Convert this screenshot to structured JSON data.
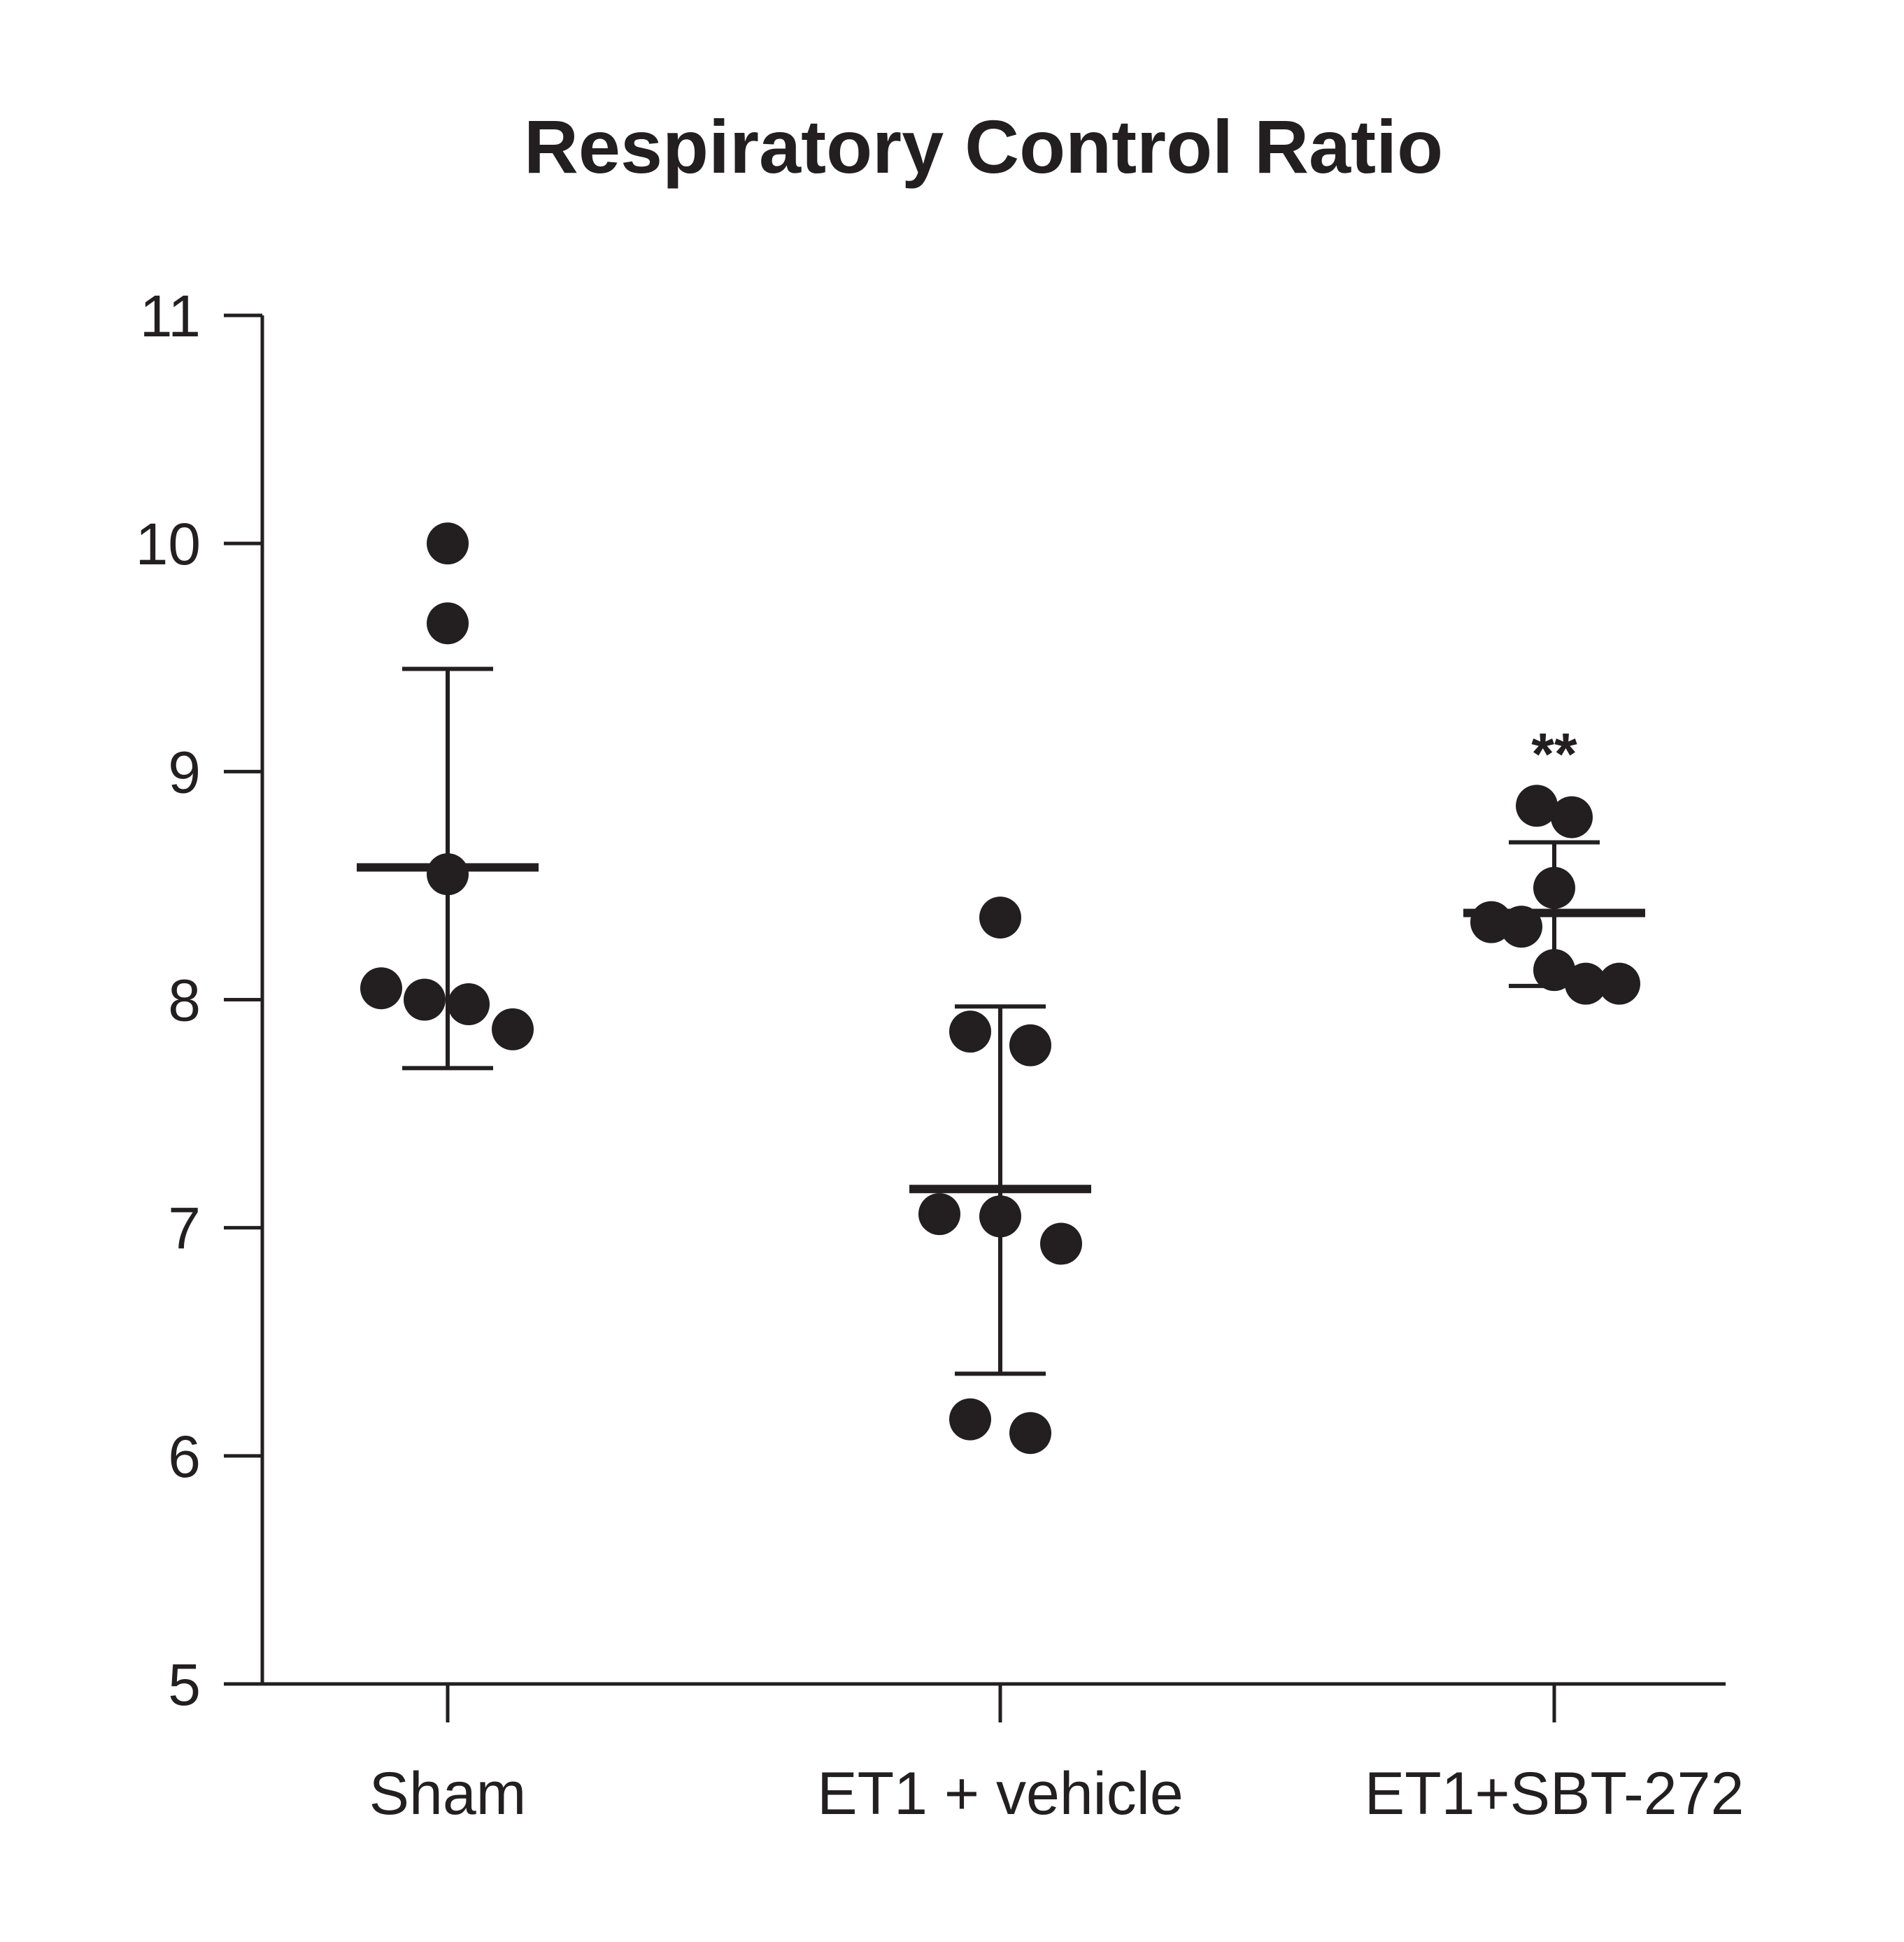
{
  "chart_data": {
    "type": "scatter",
    "title": "Respiratory Control Ratio",
    "xlabel": "",
    "ylabel": "",
    "ylim": [
      5,
      11
    ],
    "yticks": [
      "5",
      "6",
      "7",
      "8",
      "9",
      "10",
      "11"
    ],
    "grid": false,
    "categories": [
      "Sham",
      "ET1 + vehicle",
      "ET1+SBT-272"
    ],
    "groups": [
      {
        "category": "Sham",
        "points": [
          10.0,
          9.65,
          8.55,
          8.05,
          8.0,
          7.98,
          7.87
        ],
        "mean": 8.58,
        "error_upper": 9.45,
        "error_lower": 7.7,
        "annotation": ""
      },
      {
        "category": "ET1 + vehicle",
        "points": [
          8.36,
          7.86,
          7.8,
          7.06,
          7.05,
          6.93,
          6.16,
          6.1
        ],
        "mean": 7.17,
        "error_upper": 7.97,
        "error_lower": 6.36,
        "annotation": ""
      },
      {
        "category": "ET1+SBT-272",
        "points": [
          8.85,
          8.8,
          8.49,
          8.34,
          8.32,
          8.13,
          8.07,
          8.07
        ],
        "mean": 8.38,
        "error_upper": 8.69,
        "error_lower": 8.06,
        "annotation": "**"
      }
    ],
    "colors": {
      "ink": "#231f20",
      "background": "#ffffff"
    }
  }
}
